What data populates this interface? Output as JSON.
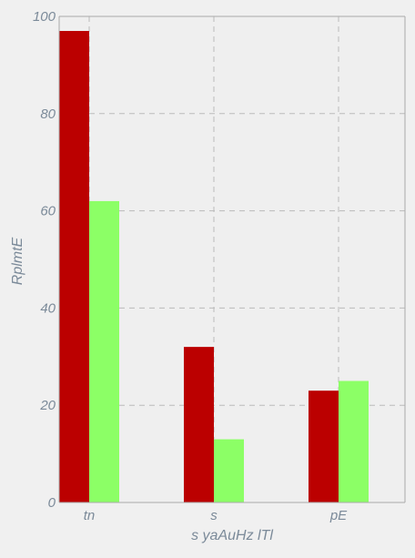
{
  "chart_data": {
    "type": "bar",
    "categories": [
      "tn",
      "s",
      "pE"
    ],
    "series": [
      {
        "values": [
          97,
          32,
          23
        ]
      },
      {
        "values": [
          62,
          13,
          25
        ]
      }
    ],
    "xlabel": "s yaAuHz lTl",
    "ylabel": "RplmtE",
    "ylim": [
      0,
      100
    ],
    "yticks": [
      0,
      20,
      40,
      60,
      80,
      100
    ],
    "grid": true,
    "legend": "none"
  },
  "colors": {
    "series": [
      "#bb0000",
      "#8cff66"
    ],
    "background": "#efefef",
    "grid": "#bbbbbb",
    "axis": "#aaaaaa",
    "text": "#7b8a99"
  }
}
